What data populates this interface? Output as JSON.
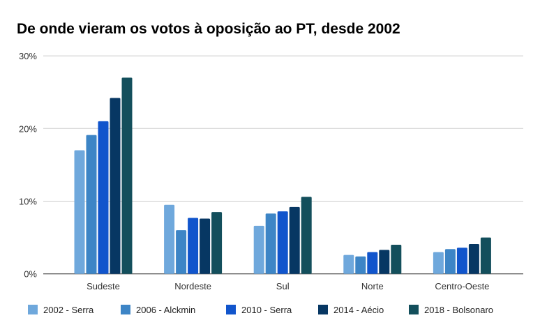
{
  "chart_data": {
    "type": "bar",
    "title": "De onde vieram os votos à oposição ao PT, desde 2002",
    "xlabel": "",
    "ylabel": "",
    "categories": [
      "Sudeste",
      "Nordeste",
      "Sul",
      "Norte",
      "Centro-Oeste"
    ],
    "ylim": [
      0,
      30
    ],
    "yticks": [
      0,
      10,
      20,
      30
    ],
    "ytick_labels": [
      "0%",
      "10%",
      "20%",
      "30%"
    ],
    "grid": true,
    "legend_position": "bottom",
    "series": [
      {
        "name": "2002 - Serra",
        "color": "#6fa8dc",
        "values": [
          17.0,
          9.5,
          6.6,
          2.6,
          3.0
        ]
      },
      {
        "name": "2006 - Alckmin",
        "color": "#3d85c6",
        "values": [
          19.1,
          6.0,
          8.3,
          2.4,
          3.4
        ]
      },
      {
        "name": "2010 - Serra",
        "color": "#1155cc",
        "values": [
          21.0,
          7.7,
          8.6,
          3.0,
          3.6
        ]
      },
      {
        "name": "2014 - Aécio",
        "color": "#073763",
        "values": [
          24.2,
          7.6,
          9.2,
          3.3,
          4.1
        ]
      },
      {
        "name": "2018 - Bolsonaro",
        "color": "#134f5c",
        "values": [
          27.0,
          8.5,
          10.6,
          4.0,
          5.0
        ]
      }
    ]
  }
}
